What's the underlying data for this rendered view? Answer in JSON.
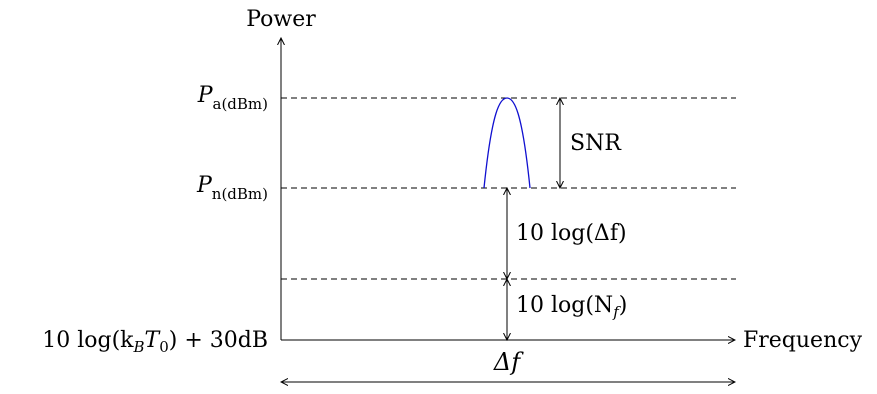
{
  "axes": {
    "y_label": "Power",
    "x_label": "Frequency",
    "origin_label": {
      "prefix": "10 log(k",
      "sub_b": "B",
      "mid": "T",
      "sub_0": "0",
      "suffix": ") + 30dB"
    }
  },
  "levels": {
    "pa": {
      "symbol": "P",
      "subscript": "a(dBm)"
    },
    "pn": {
      "symbol": "P",
      "subscript": "n(dBm)"
    }
  },
  "annotations": {
    "snr": "SNR",
    "bandwidth_term": "10 log(Δf)",
    "noise_figure_term": {
      "prefix": "10 log(N",
      "sub": "f",
      "suffix": ")"
    },
    "delta_f": "Δf"
  },
  "colors": {
    "signal_curve": "#1010d0",
    "lines": "#000000"
  }
}
